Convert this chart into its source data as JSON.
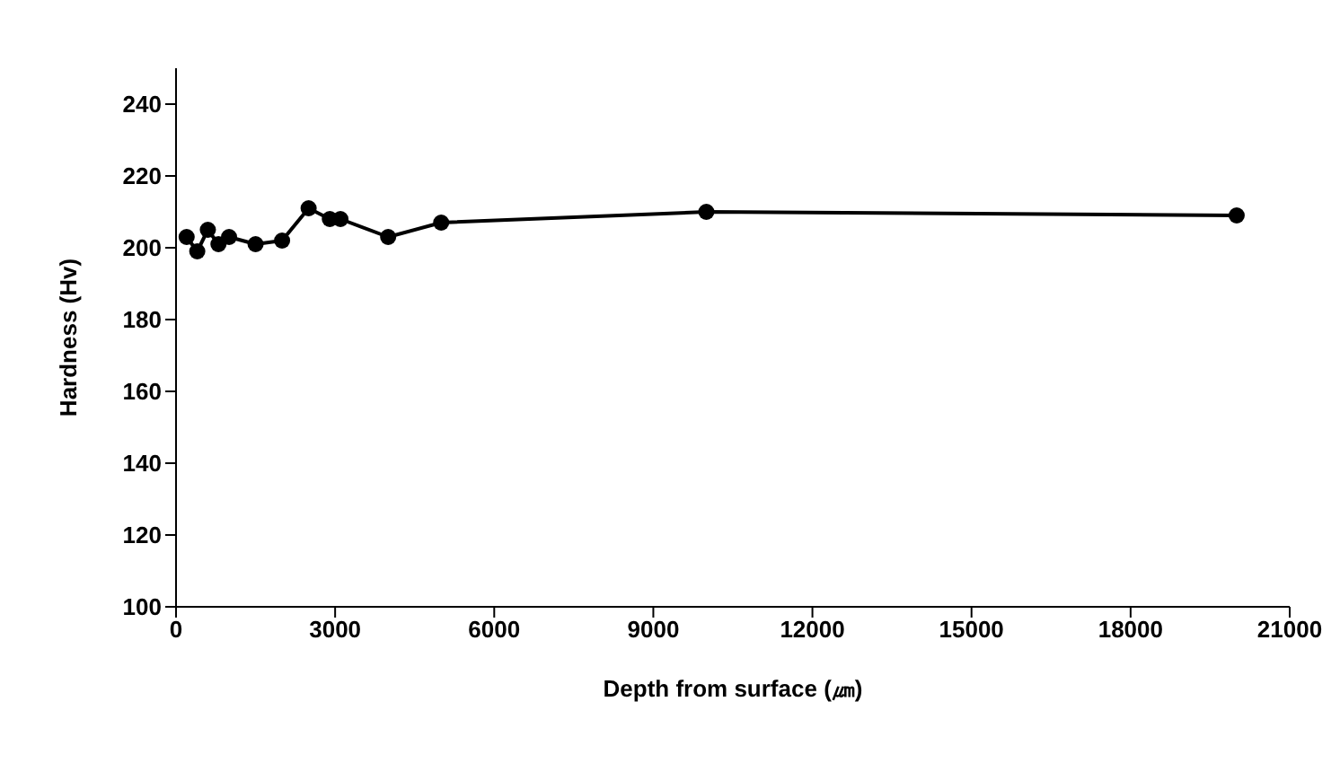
{
  "chart_data": {
    "type": "line",
    "xlabel": "Depth from surface (㎛)",
    "ylabel": "Hardness (Hv)",
    "x": [
      200,
      400,
      600,
      800,
      1000,
      1500,
      2000,
      2500,
      2900,
      3100,
      4000,
      5000,
      10000,
      20000
    ],
    "series": [
      {
        "color": "#000000",
        "values": [
          203,
          199,
          205,
          201,
          203,
          201,
          202,
          211,
          208,
          208,
          203,
          207,
          210,
          209
        ]
      }
    ],
    "xlim": [
      0,
      21000
    ],
    "xticks": [
      0,
      3000,
      6000,
      9000,
      12000,
      15000,
      18000,
      21000
    ],
    "ylim": [
      100,
      250
    ],
    "yticks": [
      100,
      120,
      140,
      160,
      180,
      200,
      220,
      240
    ],
    "marker": "circle",
    "line_style": "solid",
    "grid": false,
    "legend": false
  }
}
